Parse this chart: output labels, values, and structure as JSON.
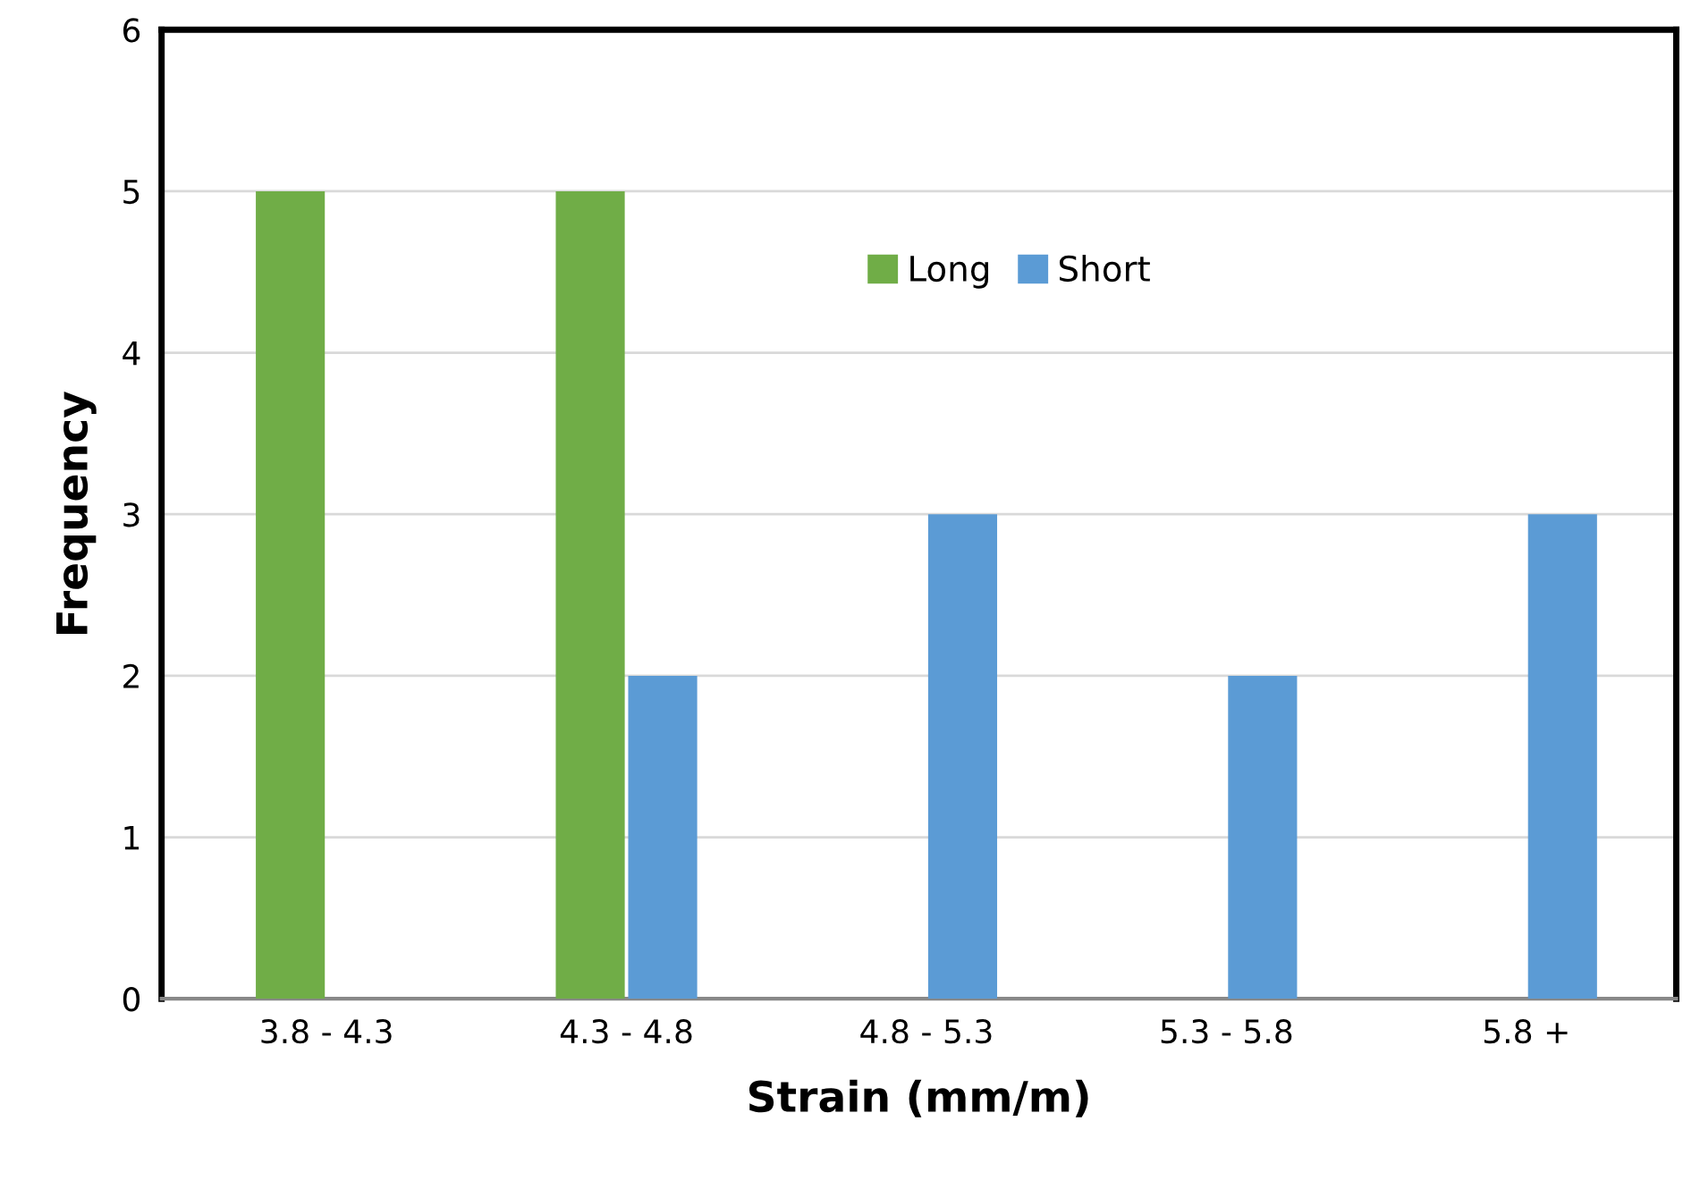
{
  "chart_data": {
    "type": "bar",
    "xlabel": "Strain (mm/m)",
    "ylabel": "Frequency",
    "categories": [
      "3.8 - 4.3",
      "4.3 - 4.8",
      "4.8 - 5.3",
      "5.3 - 5.8",
      "5.8 +"
    ],
    "series": [
      {
        "name": "Long",
        "color": "#70ad47",
        "values": [
          5,
          5,
          0,
          0,
          0
        ]
      },
      {
        "name": "Short",
        "color": "#5b9bd5",
        "values": [
          0,
          2,
          3,
          2,
          3
        ]
      }
    ],
    "ylim": [
      0,
      6
    ],
    "yticks": [
      0,
      1,
      2,
      3,
      4,
      5,
      6
    ],
    "grid": "y",
    "legend": "top"
  }
}
